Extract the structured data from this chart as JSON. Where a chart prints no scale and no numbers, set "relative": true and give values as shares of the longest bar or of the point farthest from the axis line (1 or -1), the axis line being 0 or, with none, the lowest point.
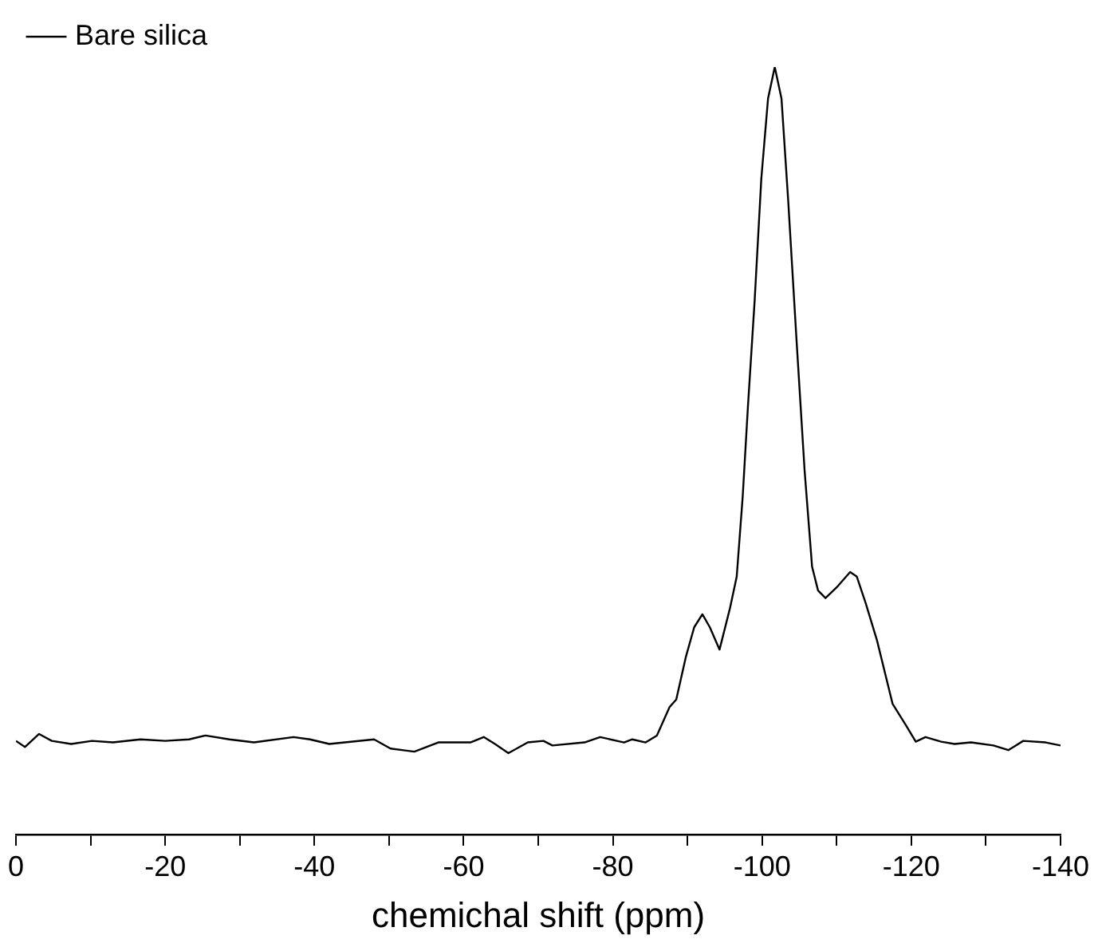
{
  "chart_data": {
    "type": "line",
    "relative": true,
    "xlabel": "chemichal shift (ppm)",
    "xlim": [
      0,
      -140
    ],
    "xticks": [
      0,
      {
        "value": -10,
        "label": null
      },
      -20,
      {
        "value": -30,
        "label": null
      },
      -40,
      {
        "value": -50,
        "label": null
      },
      -60,
      {
        "value": -70,
        "label": null
      },
      -80,
      {
        "value": -90,
        "label": null
      },
      -100,
      {
        "value": -110,
        "label": null
      },
      -120,
      {
        "value": -130,
        "label": null
      },
      -140
    ],
    "grid": false,
    "legend": "top left",
    "marker": "none",
    "line_style": "solid",
    "series": [
      {
        "name": "Bare silica",
        "color": "#000000",
        "x": [
          0,
          -1.2,
          -3.1,
          -4.8,
          -7.4,
          -10.2,
          -13.0,
          -16.7,
          -20.0,
          -23.2,
          -25.4,
          -28.6,
          -31.9,
          -37.2,
          -39.4,
          -42.0,
          -48.0,
          -50.2,
          -53.4,
          -56.6,
          -60.9,
          -62.7,
          -64.2,
          -66.0,
          -68.6,
          -70.7,
          -71.9,
          -76.2,
          -78.3,
          -81.5,
          -82.6,
          -84.4,
          -85.9,
          -87.6,
          -88.5,
          -89.8,
          -90.9,
          -92.0,
          -93.0,
          -94.3,
          -95.7,
          -96.6,
          -97.4,
          -98.1,
          -99.0,
          -99.9,
          -100.8,
          -101.7,
          -102.6,
          -103.5,
          -104.6,
          -105.7,
          -106.7,
          -107.5,
          -108.5,
          -110.0,
          -111.8,
          -112.7,
          -113.9,
          -115.4,
          -117.5,
          -119.3,
          -120.6,
          -121.9,
          -124.0,
          -125.8,
          -128.0,
          -131.0,
          -133.0,
          -135.0,
          -138.0,
          -140.0
        ],
        "values": [
          0.122,
          0.114,
          0.131,
          0.122,
          0.118,
          0.122,
          0.12,
          0.124,
          0.122,
          0.124,
          0.129,
          0.124,
          0.12,
          0.127,
          0.124,
          0.118,
          0.124,
          0.112,
          0.108,
          0.12,
          0.12,
          0.127,
          0.118,
          0.106,
          0.12,
          0.122,
          0.116,
          0.12,
          0.127,
          0.12,
          0.124,
          0.12,
          0.129,
          0.166,
          0.176,
          0.232,
          0.27,
          0.287,
          0.27,
          0.241,
          0.295,
          0.336,
          0.44,
          0.557,
          0.695,
          0.855,
          0.959,
          1.0,
          0.959,
          0.826,
          0.647,
          0.474,
          0.349,
          0.318,
          0.308,
          0.322,
          0.342,
          0.336,
          0.301,
          0.253,
          0.17,
          0.142,
          0.121,
          0.127,
          0.121,
          0.118,
          0.12,
          0.116,
          0.11,
          0.122,
          0.12,
          0.116
        ]
      }
    ]
  }
}
